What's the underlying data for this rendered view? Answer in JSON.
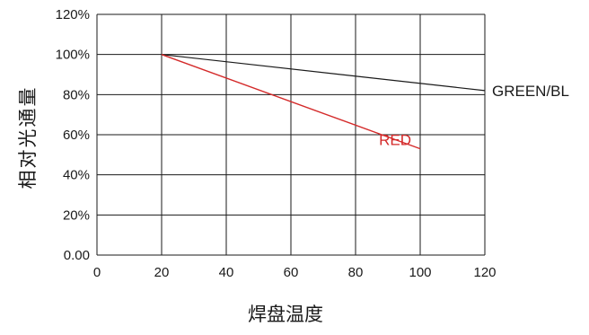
{
  "chart_data": {
    "type": "line",
    "xlabel": "焊盘温度",
    "ylabel": "相对光通量",
    "xlim": [
      0,
      120
    ],
    "ylim": [
      0,
      120
    ],
    "x_ticks": [
      "0",
      "20",
      "40",
      "60",
      "80",
      "100",
      "120"
    ],
    "y_ticks": [
      "0.00",
      "20%",
      "40%",
      "60%",
      "80%",
      "100%",
      "120%"
    ],
    "grid": true,
    "legend": "inline labels at line ends",
    "series": [
      {
        "name": "GREEN/BL",
        "color": "#1a1a1a",
        "x": [
          20,
          120
        ],
        "y": [
          100,
          82
        ]
      },
      {
        "name": "RED",
        "color": "#d42a2a",
        "x": [
          20,
          100
        ],
        "y": [
          100,
          53
        ]
      }
    ]
  }
}
